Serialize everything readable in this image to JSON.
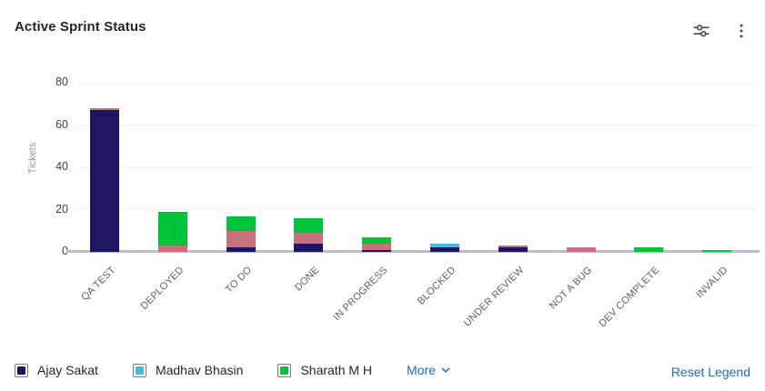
{
  "header": {
    "title": "Active Sprint Status"
  },
  "toolbar": {
    "icons": [
      {
        "name": "sliders-filter-icon"
      },
      {
        "name": "kebab-menu-icon"
      }
    ]
  },
  "chart_data": {
    "type": "bar",
    "stacked": true,
    "title": "Active Sprint Status",
    "xlabel": "",
    "ylabel": "Tickets",
    "ylim": [
      0,
      80
    ],
    "yticks": [
      0,
      20,
      40,
      60,
      80
    ],
    "grid": true,
    "legend_position": "bottom",
    "categories": [
      "QA TEST",
      "DEPLOYED",
      "TO DO",
      "DONE",
      "IN PROGRESS",
      "BLOCKED",
      "UNDER REVIEW",
      "NOT A BUG",
      "DEV COMPLETE",
      "INVALID"
    ],
    "series": [
      {
        "name": "Ajay Sakat",
        "color": "#1e1663",
        "in_visible_legend": true,
        "values": [
          67,
          0,
          2,
          4,
          1,
          2,
          2,
          0,
          0,
          0
        ]
      },
      {
        "name": "Madhav Bhasin",
        "color": "#48bae4",
        "in_visible_legend": true,
        "values": [
          0,
          0,
          0,
          0,
          0,
          2,
          0,
          0,
          0,
          0
        ]
      },
      {
        "name": "(under More)",
        "color": "#c7717f",
        "in_visible_legend": false,
        "values": [
          1,
          3,
          8,
          5,
          3,
          0,
          1,
          2,
          0,
          0
        ]
      },
      {
        "name": "Sharath M H",
        "color": "#00c33c",
        "in_visible_legend": true,
        "values": [
          0,
          16,
          7,
          7,
          3,
          0,
          0,
          0,
          2,
          1
        ]
      }
    ]
  },
  "legend": {
    "items": [
      {
        "label": "Ajay Sakat",
        "color": "#1e1663"
      },
      {
        "label": "Madhav Bhasin",
        "color": "#48bae4"
      },
      {
        "label": "Sharath M H",
        "color": "#00c33c"
      }
    ],
    "more_label": "More",
    "reset_label": "Reset Legend"
  },
  "colors": {
    "link": "#1868db",
    "title_text": "#22272b",
    "axis_text": "#3d4046",
    "category_text": "#5d6064",
    "gridline": "#f0f1f3",
    "baseline": "#b7bdc9"
  }
}
